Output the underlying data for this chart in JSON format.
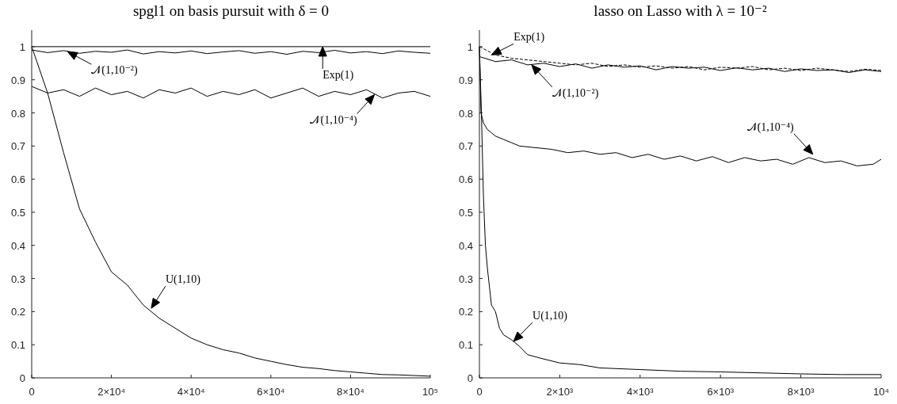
{
  "chart_data": [
    {
      "type": "line",
      "title": "spgl1 on basis pursuit with δ = 0",
      "xlim": [
        0,
        100000
      ],
      "ylim": [
        0,
        1.05
      ],
      "xticks": [
        0,
        {
          "value": 20000,
          "label": "2×10⁴"
        },
        {
          "value": 40000,
          "label": "4×10⁴"
        },
        {
          "value": 60000,
          "label": "6×10⁴"
        },
        {
          "value": 80000,
          "label": "8×10⁴"
        },
        {
          "value": 100000,
          "label": "10⁵"
        }
      ],
      "yticks": [
        0,
        0.1,
        0.2,
        0.3,
        0.4,
        0.5,
        0.6,
        0.7,
        0.8,
        0.9,
        1
      ],
      "grid": false,
      "line_style": "solid",
      "series": [
        {
          "color": "#000000",
          "x": [
            0,
            100000
          ],
          "values": [
            1,
            1
          ]
        },
        {
          "color": "#000000",
          "x": [
            0,
            4000,
            8000,
            12000,
            16000,
            20000,
            24000,
            28000,
            32000,
            36000,
            40000,
            44000,
            48000,
            52000,
            56000,
            60000,
            64000,
            68000,
            72000,
            76000,
            80000,
            84000,
            88000,
            92000,
            96000,
            100000
          ],
          "values": [
            0.99,
            0.982,
            0.988,
            0.98,
            0.986,
            0.983,
            0.99,
            0.978,
            0.985,
            0.981,
            0.987,
            0.979,
            0.984,
            0.988,
            0.98,
            0.985,
            0.977,
            0.986,
            0.982,
            0.989,
            0.981,
            0.985,
            0.979,
            0.987,
            0.983,
            0.98
          ]
        },
        {
          "color": "#000000",
          "x": [
            0,
            4000,
            8000,
            12000,
            16000,
            20000,
            24000,
            28000,
            32000,
            36000,
            40000,
            44000,
            48000,
            52000,
            56000,
            60000,
            64000,
            68000,
            72000,
            76000,
            80000,
            84000,
            88000,
            92000,
            96000,
            100000
          ],
          "values": [
            0.88,
            0.86,
            0.87,
            0.85,
            0.875,
            0.855,
            0.865,
            0.845,
            0.87,
            0.86,
            0.875,
            0.85,
            0.865,
            0.855,
            0.87,
            0.845,
            0.86,
            0.875,
            0.85,
            0.865,
            0.855,
            0.87,
            0.845,
            0.86,
            0.865,
            0.85
          ]
        },
        {
          "color": "#000000",
          "x": [
            0,
            4000,
            8000,
            12000,
            16000,
            20000,
            24000,
            28000,
            32000,
            36000,
            40000,
            44000,
            48000,
            52000,
            56000,
            60000,
            64000,
            68000,
            72000,
            76000,
            80000,
            84000,
            88000,
            92000,
            96000,
            100000
          ],
          "values": [
            1.0,
            0.86,
            0.68,
            0.51,
            0.41,
            0.32,
            0.28,
            0.22,
            0.18,
            0.15,
            0.12,
            0.1,
            0.085,
            0.075,
            0.06,
            0.05,
            0.04,
            0.032,
            0.028,
            0.022,
            0.018,
            0.014,
            0.01,
            0.009,
            0.007,
            0.005
          ]
        }
      ],
      "annotations": [
        {
          "text": "𝒩(1,10⁻²)",
          "x": 9000,
          "y": 0.985
        },
        {
          "text": "Exp(1)",
          "x": 73000,
          "y": 1.0
        },
        {
          "text": "𝒩(1,10⁻⁴)",
          "x": 86000,
          "y": 0.855
        },
        {
          "text": "U(1,10)",
          "x": 30000,
          "y": 0.21
        }
      ]
    },
    {
      "type": "line",
      "title": "lasso on Lasso with λ = 10⁻²",
      "xlim": [
        0,
        10000
      ],
      "ylim": [
        0,
        1.05
      ],
      "xticks": [
        0,
        {
          "value": 2000,
          "label": "2×10³"
        },
        {
          "value": 4000,
          "label": "4×10³"
        },
        {
          "value": 6000,
          "label": "6×10³"
        },
        {
          "value": 8000,
          "label": "8×10³"
        },
        {
          "value": 10000,
          "label": "10⁴"
        }
      ],
      "yticks": [
        0,
        0.1,
        0.2,
        0.3,
        0.4,
        0.5,
        0.6,
        0.7,
        0.8,
        0.9,
        1
      ],
      "grid": false,
      "line_style": "solid",
      "series": [
        {
          "color": "#000000",
          "line_style": "dashed",
          "x": [
            0,
            400,
            800,
            1200,
            1600,
            2000,
            2400,
            2800,
            3200,
            3600,
            4000,
            4400,
            4800,
            5200,
            5600,
            6000,
            6400,
            6800,
            7200,
            7600,
            8000,
            8400,
            8800,
            9200,
            9600,
            10000
          ],
          "values": [
            1.0,
            0.975,
            0.965,
            0.96,
            0.955,
            0.95,
            0.945,
            0.95,
            0.94,
            0.945,
            0.938,
            0.942,
            0.935,
            0.94,
            0.93,
            0.938,
            0.935,
            0.94,
            0.93,
            0.935,
            0.928,
            0.935,
            0.93,
            0.925,
            0.932,
            0.928
          ]
        },
        {
          "color": "#000000",
          "x": [
            0,
            400,
            800,
            1200,
            1600,
            2000,
            2400,
            2800,
            3200,
            3600,
            4000,
            4400,
            4800,
            5200,
            5600,
            6000,
            6400,
            6800,
            7200,
            7600,
            8000,
            8400,
            8800,
            9200,
            9600,
            10000
          ],
          "values": [
            0.97,
            0.955,
            0.96,
            0.945,
            0.95,
            0.94,
            0.948,
            0.935,
            0.945,
            0.938,
            0.942,
            0.93,
            0.94,
            0.935,
            0.938,
            0.928,
            0.936,
            0.93,
            0.935,
            0.925,
            0.933,
            0.928,
            0.93,
            0.922,
            0.93,
            0.925
          ]
        },
        {
          "color": "#000000",
          "x": [
            0,
            40,
            100,
            200,
            400,
            600,
            800,
            1000,
            1400,
            1800,
            2200,
            2600,
            3000,
            3400,
            3800,
            4200,
            4600,
            5000,
            5400,
            5800,
            6200,
            6600,
            7000,
            7400,
            7800,
            8200,
            8600,
            9000,
            9400,
            9800,
            10000
          ],
          "values": [
            1.0,
            0.8,
            0.77,
            0.75,
            0.73,
            0.72,
            0.71,
            0.7,
            0.695,
            0.69,
            0.68,
            0.685,
            0.675,
            0.68,
            0.665,
            0.675,
            0.66,
            0.67,
            0.655,
            0.668,
            0.65,
            0.665,
            0.655,
            0.66,
            0.645,
            0.665,
            0.65,
            0.655,
            0.64,
            0.645,
            0.66
          ]
        },
        {
          "color": "#000000",
          "x": [
            0,
            50,
            100,
            150,
            200,
            300,
            400,
            500,
            600,
            800,
            1000,
            1200,
            1500,
            2000,
            2500,
            3000,
            4000,
            5000,
            6000,
            7000,
            8000,
            9000,
            10000
          ],
          "values": [
            1.0,
            0.8,
            0.55,
            0.4,
            0.33,
            0.22,
            0.2,
            0.15,
            0.13,
            0.115,
            0.095,
            0.07,
            0.06,
            0.045,
            0.04,
            0.03,
            0.025,
            0.02,
            0.018,
            0.015,
            0.012,
            0.01,
            0.01
          ]
        }
      ],
      "annotations": [
        {
          "text": "Exp(1)",
          "x": 300,
          "y": 0.975
        },
        {
          "text": "𝒩(1,10⁻²)",
          "x": 1300,
          "y": 0.945
        },
        {
          "text": "𝒩(1,10⁻⁴)",
          "x": 8300,
          "y": 0.675
        },
        {
          "text": "U(1,10)",
          "x": 850,
          "y": 0.11
        }
      ]
    }
  ]
}
